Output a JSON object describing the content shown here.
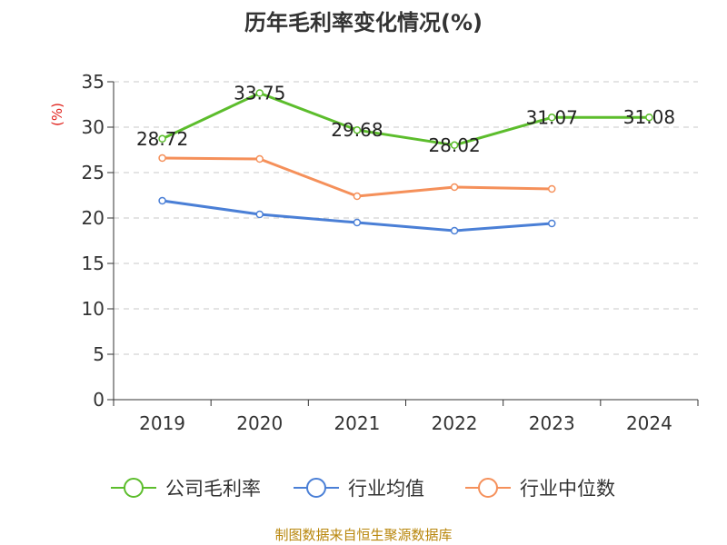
{
  "chart_data": {
    "type": "line",
    "title": "历年毛利率变化情况(%)",
    "ylabel": "(%)",
    "xlabel": "",
    "categories": [
      "2019",
      "2020",
      "2021",
      "2022",
      "2023",
      "2024"
    ],
    "ylim": [
      0,
      35
    ],
    "yticks": [
      0,
      5,
      10,
      15,
      20,
      25,
      30,
      35
    ],
    "grid": true,
    "legend_position": "bottom",
    "series": [
      {
        "name": "公司毛利率",
        "color": "#5cbd2c",
        "values": [
          28.72,
          33.75,
          29.68,
          28.02,
          31.07,
          31.08
        ],
        "labels": [
          "28.72",
          "33.75",
          "29.68",
          "28.02",
          "31.07",
          "31.08"
        ]
      },
      {
        "name": "行业均值",
        "color": "#4a7fd6",
        "values": [
          21.9,
          20.4,
          19.5,
          18.6,
          19.4,
          null
        ]
      },
      {
        "name": "行业中位数",
        "color": "#f5905a",
        "values": [
          26.6,
          26.5,
          22.4,
          23.4,
          23.2,
          null
        ]
      }
    ]
  },
  "footer": {
    "source": "制图数据来自恒生聚源数据库"
  }
}
